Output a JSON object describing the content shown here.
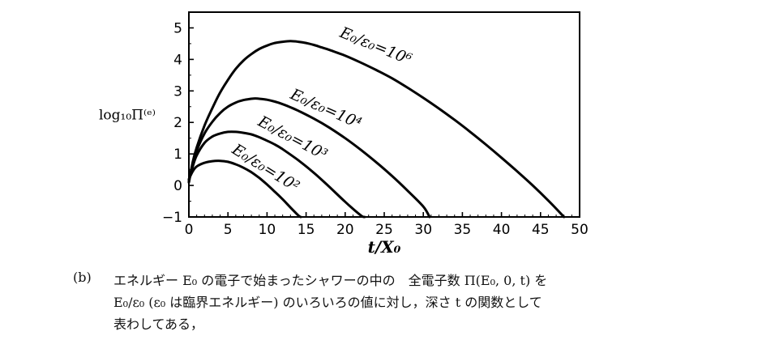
{
  "chart_data": {
    "type": "line",
    "xlabel": "t/X₀",
    "ylabel": "log₁₀Π⁽ᵉ⁾",
    "xlim": [
      0,
      50
    ],
    "ylim": [
      -1,
      5.5
    ],
    "x_ticks": [
      "0",
      "5",
      "10",
      "15",
      "20",
      "25",
      "30",
      "35",
      "40",
      "45",
      "50"
    ],
    "y_ticks": [
      "−1",
      "0",
      "1",
      "2",
      "3",
      "4",
      "5"
    ],
    "grid": false,
    "series": [
      {
        "name": "E₀/ε₀=10⁶",
        "x": [
          0,
          0.5,
          1,
          2,
          3,
          4,
          5,
          6,
          7,
          8,
          9,
          10,
          11,
          12,
          13,
          14,
          15,
          16,
          17,
          18,
          19,
          20,
          22,
          24,
          26,
          28,
          30,
          32,
          34,
          36,
          38,
          40,
          42,
          44,
          46,
          48
        ],
        "values": [
          0.1,
          0.75,
          1.2,
          1.9,
          2.45,
          2.95,
          3.35,
          3.7,
          3.97,
          4.17,
          4.33,
          4.44,
          4.52,
          4.56,
          4.58,
          4.56,
          4.52,
          4.46,
          4.38,
          4.3,
          4.21,
          4.12,
          3.9,
          3.66,
          3.4,
          3.1,
          2.78,
          2.44,
          2.08,
          1.7,
          1.3,
          0.88,
          0.45,
          0.0,
          -0.48,
          -1.0
        ]
      },
      {
        "name": "E₀/ε₀=10⁴",
        "x": [
          0,
          0.5,
          1,
          2,
          3,
          4,
          5,
          6,
          7,
          8,
          8.5,
          9,
          10,
          11,
          12,
          13,
          14,
          16,
          18,
          20,
          22,
          24,
          26,
          28,
          30,
          30.8
        ],
        "values": [
          0.1,
          0.7,
          1.1,
          1.65,
          2.02,
          2.3,
          2.5,
          2.63,
          2.71,
          2.75,
          2.76,
          2.75,
          2.72,
          2.66,
          2.58,
          2.48,
          2.37,
          2.12,
          1.83,
          1.5,
          1.13,
          0.73,
          0.3,
          -0.17,
          -0.67,
          -1.0
        ]
      },
      {
        "name": "E₀/ε₀=10³",
        "x": [
          0,
          0.5,
          1,
          2,
          3,
          4,
          5,
          6,
          7,
          8,
          9,
          10,
          11,
          12,
          14,
          16,
          18,
          20,
          22,
          22.5
        ],
        "values": [
          0.15,
          0.6,
          0.95,
          1.35,
          1.55,
          1.65,
          1.7,
          1.7,
          1.67,
          1.62,
          1.53,
          1.42,
          1.3,
          1.15,
          0.8,
          0.4,
          -0.05,
          -0.52,
          -0.95,
          -1.0
        ]
      },
      {
        "name": "E₀/ε₀=10²",
        "x": [
          0,
          0.5,
          1,
          2,
          3,
          4,
          5,
          6,
          7,
          8,
          9,
          10,
          11,
          12,
          13,
          14,
          14.3
        ],
        "values": [
          0.2,
          0.45,
          0.6,
          0.72,
          0.77,
          0.78,
          0.75,
          0.67,
          0.56,
          0.42,
          0.24,
          0.03,
          -0.2,
          -0.44,
          -0.7,
          -0.95,
          -1.0
        ]
      }
    ]
  },
  "caption": {
    "label": "(b)",
    "line1": "エネルギー E₀ の電子で始まったシャワーの中の　全電子数 Π(E₀, 0, t) を",
    "line2": "E₀/ε₀ (ε₀ は臨界エネルギー) のいろいろの値に対し，深さ t の関数として",
    "line3": "表わしてある，"
  }
}
